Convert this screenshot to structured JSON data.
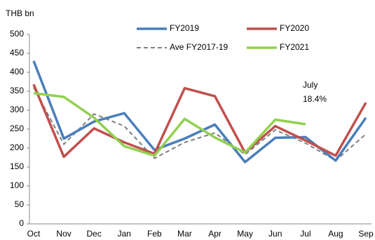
{
  "chart_data": {
    "type": "line",
    "y_label": "THB bn",
    "categories": [
      "Oct",
      "Nov",
      "Dec",
      "Jan",
      "Feb",
      "Mar",
      "Apr",
      "May",
      "Jun",
      "Jul",
      "Aug",
      "Sep"
    ],
    "series": [
      {
        "name": "FY2019",
        "color": "#4a7ebb",
        "dashed": false,
        "values": [
          430,
          225,
          270,
          292,
          195,
          225,
          262,
          163,
          227,
          229,
          167,
          280
        ]
      },
      {
        "name": "FY2020",
        "color": "#c0504d",
        "dashed": false,
        "values": [
          368,
          177,
          252,
          215,
          185,
          358,
          337,
          188,
          258,
          220,
          180,
          320
        ]
      },
      {
        "name": "Ave FY2017-19",
        "color": "#7f7f7f",
        "dashed": true,
        "values": [
          360,
          210,
          290,
          258,
          173,
          215,
          240,
          183,
          248,
          213,
          167,
          237
        ]
      },
      {
        "name": "FY2021",
        "color": "#92d050",
        "dashed": false,
        "values": [
          345,
          335,
          280,
          205,
          180,
          277,
          228,
          188,
          275,
          263,
          null,
          null
        ]
      }
    ],
    "annotation": {
      "lines": [
        "July",
        "18.4%"
      ],
      "color": "#e03020"
    },
    "ylim": [
      0,
      500
    ],
    "yticks": [
      0,
      50,
      100,
      150,
      200,
      250,
      300,
      350,
      400,
      450,
      500
    ],
    "grid": false
  }
}
